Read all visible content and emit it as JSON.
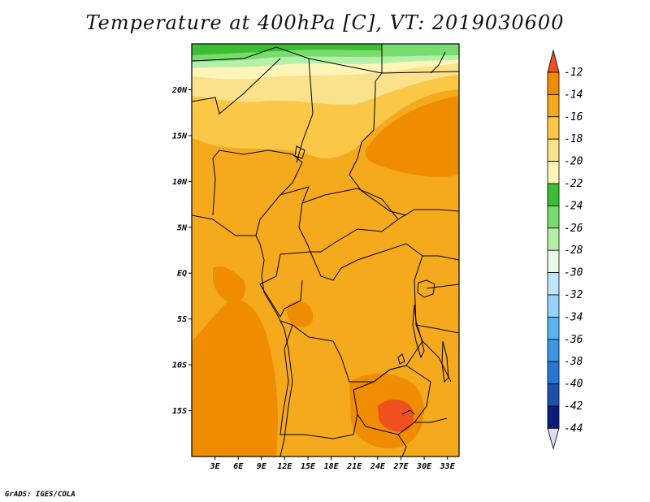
{
  "title": "Temperature at 400hPa [C], VT: 2019030600",
  "credit": "GrADS: IGES/COLA",
  "axes": {
    "lon_range": [
      0,
      34.5
    ],
    "lat_range": [
      -20,
      25
    ],
    "lat_ticks": [
      {
        "value": 20,
        "label": "20N"
      },
      {
        "value": 15,
        "label": "15N"
      },
      {
        "value": 10,
        "label": "10N"
      },
      {
        "value": 5,
        "label": "5N"
      },
      {
        "value": 0,
        "label": "EQ"
      },
      {
        "value": -5,
        "label": "5S"
      },
      {
        "value": -10,
        "label": "10S"
      },
      {
        "value": -15,
        "label": "15S"
      }
    ],
    "lon_ticks": [
      {
        "value": 3,
        "label": "3E"
      },
      {
        "value": 6,
        "label": "6E"
      },
      {
        "value": 9,
        "label": "9E"
      },
      {
        "value": 12,
        "label": "12E"
      },
      {
        "value": 15,
        "label": "15E"
      },
      {
        "value": 18,
        "label": "18E"
      },
      {
        "value": 21,
        "label": "21E"
      },
      {
        "value": 24,
        "label": "24E"
      },
      {
        "value": 27,
        "label": "27E"
      },
      {
        "value": 30,
        "label": "30E"
      },
      {
        "value": 33,
        "label": "33E"
      }
    ]
  },
  "colorbar": {
    "levels": [
      "-12",
      "-14",
      "-16",
      "-18",
      "-20",
      "-22",
      "-24",
      "-26",
      "-28",
      "-30",
      "-32",
      "-34",
      "-36",
      "-38",
      "-40",
      "-42",
      "-44"
    ],
    "colors": [
      "#f0501e",
      "#f08c00",
      "#f5aa1e",
      "#fac846",
      "#fae18c",
      "#fff5b9",
      "#3cbe32",
      "#78dc6e",
      "#b4f0aa",
      "#e6fae6",
      "#bee6fa",
      "#96d2fa",
      "#5ab4f0",
      "#3c96e6",
      "#2878d2",
      "#1e50aa",
      "#0a1e78",
      "#dcdcf0"
    ]
  },
  "colors": {
    "field_base": "#f5aa1e",
    "field_warm": "#f08c00",
    "field_hot": "#f0501e",
    "field_cool": "#fac846",
    "field_cooler": "#fae18c",
    "field_pale": "#fff5b9",
    "field_green": "#3cbe32",
    "field_lightgreen": "#78dc6e",
    "field_palegreen": "#b4f0aa",
    "border": "#000000"
  }
}
